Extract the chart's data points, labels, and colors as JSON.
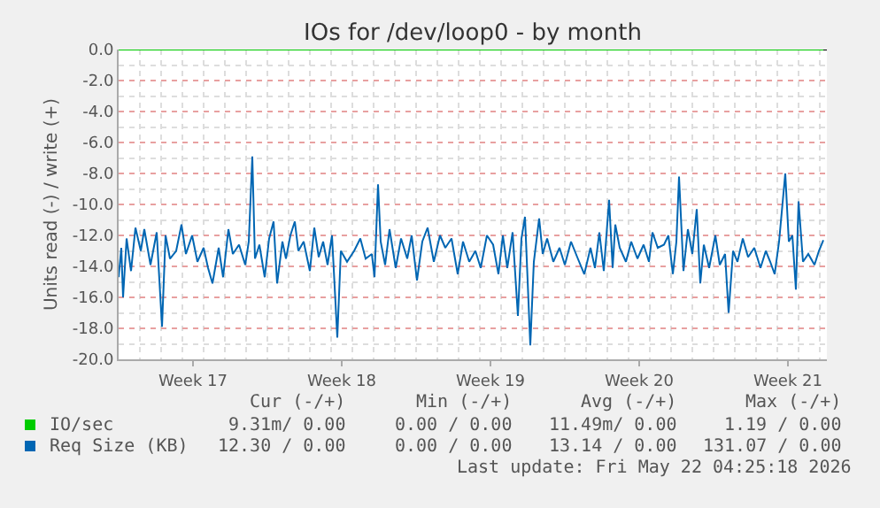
{
  "chart_data": {
    "type": "line",
    "title": "IOs for /dev/loop0 - by month",
    "ylabel": "Units read (-) / write (+)",
    "x": [
      "2026-04-20T00:00",
      "2026-04-20T03:00",
      "2026-04-20T05:00",
      "2026-04-20T09:00",
      "2026-04-20T14:00",
      "2026-04-20T19:00",
      "2026-04-21T01:00",
      "2026-04-21T05:00",
      "2026-04-21T12:00",
      "2026-04-21T19:00",
      "2026-04-22T01:00",
      "2026-04-22T05:00",
      "2026-04-22T10:00",
      "2026-04-22T17:00",
      "2026-04-22T23:00",
      "2026-04-23T04:00",
      "2026-04-23T11:00",
      "2026-04-23T17:00",
      "2026-04-24T00:00",
      "2026-04-24T05:00",
      "2026-04-24T10:00",
      "2026-04-24T17:00",
      "2026-04-24T22:00",
      "2026-04-25T04:00",
      "2026-04-25T09:00",
      "2026-04-25T16:00",
      "2026-04-25T23:00",
      "2026-04-26T03:00",
      "2026-04-26T07:00",
      "2026-04-26T10:00",
      "2026-04-26T15:00",
      "2026-04-26T21:00",
      "2026-04-27T02:00",
      "2026-04-27T07:00",
      "2026-04-27T11:00",
      "2026-04-27T17:00",
      "2026-04-27T21:00",
      "2026-04-28T02:00",
      "2026-04-28T07:00",
      "2026-04-28T11:00",
      "2026-04-28T17:00",
      "2026-04-29T00:00",
      "2026-04-29T05:00",
      "2026-04-29T10:00",
      "2026-04-29T15:00",
      "2026-04-29T20:00",
      "2026-04-30T01:00",
      "2026-04-30T07:00",
      "2026-04-30T11:00",
      "2026-04-30T18:00",
      "2026-05-01T02:00",
      "2026-05-01T09:00",
      "2026-05-01T15:00",
      "2026-05-01T22:00",
      "2026-05-02T01:00",
      "2026-05-02T05:00",
      "2026-05-02T08:00",
      "2026-05-02T13:00",
      "2026-05-02T18:00",
      "2026-05-03T01:00",
      "2026-05-03T07:00",
      "2026-05-03T14:00",
      "2026-05-03T19:00",
      "2026-05-04T01:00",
      "2026-05-04T07:00",
      "2026-05-04T13:00",
      "2026-05-04T20:00",
      "2026-05-05T03:00",
      "2026-05-05T09:00",
      "2026-05-05T16:00",
      "2026-05-05T23:00",
      "2026-05-06T05:00",
      "2026-05-06T12:00",
      "2026-05-06T19:00",
      "2026-05-07T01:00",
      "2026-05-07T08:00",
      "2026-05-07T15:00",
      "2026-05-07T21:00",
      "2026-05-08T02:00",
      "2026-05-08T07:00",
      "2026-05-08T13:00",
      "2026-05-08T19:00",
      "2026-05-08T23:00",
      "2026-05-09T03:00",
      "2026-05-09T09:00",
      "2026-05-09T13:00",
      "2026-05-09T19:00",
      "2026-05-09T23:00",
      "2026-05-10T04:00",
      "2026-05-10T11:00",
      "2026-05-10T18:00",
      "2026-05-11T00:00",
      "2026-05-11T07:00",
      "2026-05-11T14:00",
      "2026-05-11T22:00",
      "2026-05-12T05:00",
      "2026-05-12T10:00",
      "2026-05-12T15:00",
      "2026-05-12T20:00",
      "2026-05-13T02:00",
      "2026-05-13T06:00",
      "2026-05-13T09:00",
      "2026-05-13T14:00",
      "2026-05-13T21:00",
      "2026-05-14T03:00",
      "2026-05-14T10:00",
      "2026-05-14T17:00",
      "2026-05-14T23:00",
      "2026-05-15T03:00",
      "2026-05-15T09:00",
      "2026-05-15T16:00",
      "2026-05-15T21:00",
      "2026-05-16T02:00",
      "2026-05-16T06:00",
      "2026-05-16T09:00",
      "2026-05-16T14:00",
      "2026-05-16T19:00",
      "2026-05-17T00:00",
      "2026-05-17T05:00",
      "2026-05-17T09:00",
      "2026-05-17T13:00",
      "2026-05-17T19:00",
      "2026-05-18T02:00",
      "2026-05-18T07:00",
      "2026-05-18T13:00",
      "2026-05-18T17:00",
      "2026-05-18T22:00",
      "2026-05-19T03:00",
      "2026-05-19T09:00",
      "2026-05-19T15:00",
      "2026-05-19T22:00",
      "2026-05-20T05:00",
      "2026-05-20T11:00",
      "2026-05-20T16:00",
      "2026-05-20T21:00",
      "2026-05-21T02:00",
      "2026-05-21T09:00",
      "2026-05-21T13:00",
      "2026-05-21T17:00",
      "2026-05-21T21:00",
      "2026-05-22T00:00",
      "2026-05-22T05:00",
      "2026-05-22T11:00",
      "2026-05-22T18:00",
      "2026-05-22T23:00",
      "2026-05-23T04:00"
    ],
    "series": [
      {
        "name": "IO/sec",
        "color": "#00cc00",
        "x": [
          "2026-04-20T00:00",
          "2026-05-23T04:00"
        ],
        "values": [
          0,
          0
        ]
      },
      {
        "name": "Req Size (KB)",
        "color": "#0066b3",
        "values": [
          -14.7,
          -12.8,
          -16.0,
          -12.2,
          -14.3,
          -11.5,
          -13.0,
          -11.6,
          -13.9,
          -11.8,
          -17.9,
          -12.0,
          -13.5,
          -13.0,
          -11.3,
          -13.2,
          -12.0,
          -13.7,
          -12.8,
          -14.1,
          -15.1,
          -12.8,
          -14.7,
          -11.6,
          -13.2,
          -12.6,
          -13.9,
          -12.4,
          -6.9,
          -13.5,
          -12.6,
          -14.7,
          -12.2,
          -11.1,
          -15.1,
          -12.4,
          -13.5,
          -12.0,
          -11.1,
          -13.0,
          -12.4,
          -14.3,
          -11.5,
          -13.4,
          -12.4,
          -13.9,
          -12.0,
          -18.6,
          -13.0,
          -13.7,
          -13.0,
          -12.2,
          -13.5,
          -13.2,
          -14.7,
          -8.7,
          -12.4,
          -13.9,
          -11.6,
          -14.1,
          -12.2,
          -13.5,
          -12.0,
          -14.9,
          -12.4,
          -11.5,
          -13.7,
          -12.0,
          -12.8,
          -12.2,
          -14.5,
          -12.4,
          -13.7,
          -13.0,
          -14.1,
          -12.0,
          -12.6,
          -14.5,
          -12.0,
          -14.1,
          -11.8,
          -17.2,
          -12.2,
          -10.8,
          -19.1,
          -13.7,
          -10.9,
          -13.2,
          -12.2,
          -13.7,
          -12.8,
          -13.9,
          -12.4,
          -13.4,
          -14.5,
          -12.8,
          -14.1,
          -11.8,
          -14.3,
          -9.7,
          -14.1,
          -11.3,
          -12.8,
          -13.7,
          -12.4,
          -13.5,
          -12.6,
          -13.7,
          -11.8,
          -12.8,
          -12.6,
          -12.0,
          -14.5,
          -12.4,
          -8.2,
          -14.3,
          -11.6,
          -13.2,
          -10.3,
          -15.1,
          -12.6,
          -14.1,
          -12.0,
          -13.9,
          -13.2,
          -17.0,
          -13.0,
          -13.7,
          -12.2,
          -13.4,
          -12.8,
          -14.1,
          -13.0,
          -13.7,
          -14.5,
          -12.4,
          -8.0,
          -12.4,
          -12.0,
          -15.5,
          -9.8,
          -13.7,
          -13.2,
          -13.9,
          -13.0,
          -12.3
        ]
      }
    ],
    "xlim": [
      "2026-04-20T00:00",
      "2026-05-23T08:00"
    ],
    "xticks": [
      {
        "value": "2026-04-23T12:00",
        "label": "Week 17"
      },
      {
        "value": "2026-04-30T12:00",
        "label": "Week 18"
      },
      {
        "value": "2026-05-07T12:00",
        "label": "Week 19"
      },
      {
        "value": "2026-05-14T12:00",
        "label": "Week 20"
      },
      {
        "value": "2026-05-21T12:00",
        "label": "Week 21"
      }
    ],
    "ylim": [
      -20,
      0
    ],
    "yticks": [
      {
        "value": -20,
        "label": "-20.0"
      },
      {
        "value": -18,
        "label": "-18.0"
      },
      {
        "value": -16,
        "label": "-16.0"
      },
      {
        "value": -14,
        "label": "-14.0"
      },
      {
        "value": -12,
        "label": "-12.0"
      },
      {
        "value": -10,
        "label": "-10.0"
      },
      {
        "value": -8,
        "label": "-8.0"
      },
      {
        "value": -6,
        "label": "-6.0"
      },
      {
        "value": -4,
        "label": "-4.0"
      },
      {
        "value": -2,
        "label": "-2.0"
      },
      {
        "value": 0,
        "label": "0.0"
      }
    ],
    "ref_lines": [
      {
        "axis": "y",
        "value": 0,
        "color": "#000000"
      }
    ],
    "grid": true,
    "legend": "bottom left",
    "marker": "none",
    "line_style": "solid",
    "annotations": [
      "Cur (-/+)",
      "Min (-/+)",
      "Avg (-/+)",
      "Max (-/+)",
      "9.31m/ 0.00",
      "0.00 / 0.00",
      "11.49m/ 0.00",
      "1.19 / 0.00",
      "12.30 / 0.00",
      "0.00 / 0.00",
      "13.14 / 0.00",
      "131.07 / 0.00",
      "Last update: Fri May 22 04:25:18 2026"
    ]
  }
}
